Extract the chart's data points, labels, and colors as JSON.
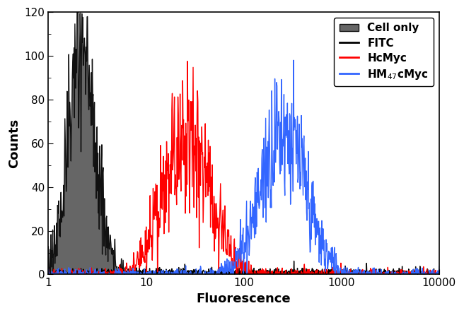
{
  "xlim": [
    1,
    10000
  ],
  "ylim": [
    0,
    120
  ],
  "xlabel": "Fluorescence",
  "ylabel": "Counts",
  "yticks": [
    0,
    20,
    40,
    60,
    80,
    100,
    120
  ],
  "legend_labels": [
    "Cell only",
    "FITC",
    "HcMyc",
    "HM$_{47}$cMyc"
  ],
  "cell_only_fill": "#666666",
  "cell_only_edge": "#111111",
  "fitc_color": "#000000",
  "hcmyc_color": "#ff0000",
  "hm47_color": "#3366ff",
  "background": "#ffffff",
  "cell_only_peak_x": 2.2,
  "cell_only_peak_y": 101,
  "cell_only_sigma": 0.32,
  "hcmyc_peak_x": 27.0,
  "hcmyc_peak_y": 65,
  "hcmyc_sigma": 0.52,
  "hm47_peak_x": 250.0,
  "hm47_peak_y": 67,
  "hm47_sigma": 0.52,
  "lw": 1.0,
  "xlabel_fontsize": 13,
  "ylabel_fontsize": 13,
  "tick_fontsize": 11,
  "legend_fontsize": 11
}
